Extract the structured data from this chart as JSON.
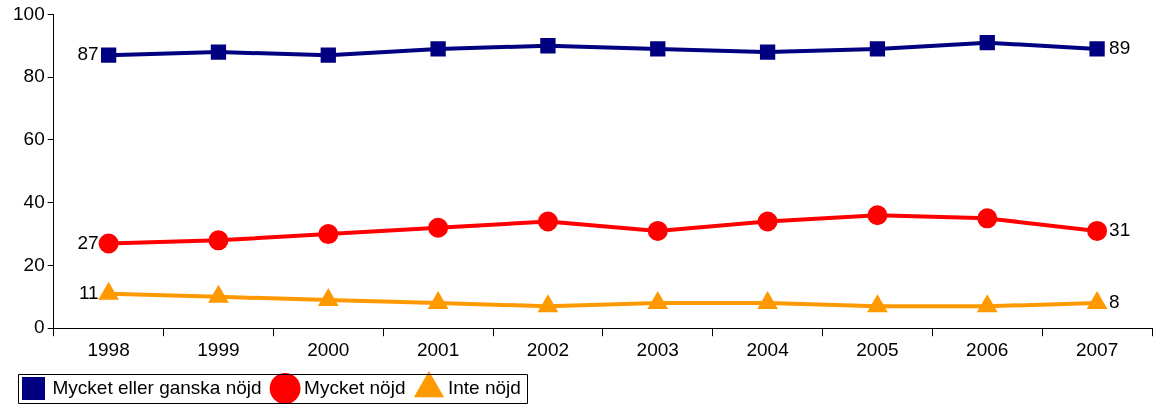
{
  "chart_data": {
    "type": "line",
    "categories": [
      "1998",
      "1999",
      "2000",
      "2001",
      "2002",
      "2003",
      "2004",
      "2005",
      "2006",
      "2007"
    ],
    "series": [
      {
        "name": "Mycket eller ganska nöjd",
        "color": "#000080",
        "marker": "square",
        "values": [
          87,
          88,
          87,
          89,
          90,
          89,
          88,
          89,
          91,
          89
        ],
        "value_labels": [
          "87",
          null,
          null,
          null,
          null,
          null,
          null,
          null,
          null,
          "89"
        ]
      },
      {
        "name": "Mycket nöjd",
        "color": "#ff0000",
        "marker": "circle",
        "values": [
          27,
          28,
          30,
          32,
          34,
          31,
          34,
          36,
          35,
          31
        ],
        "value_labels": [
          "27",
          null,
          null,
          null,
          null,
          null,
          null,
          null,
          null,
          "31"
        ]
      },
      {
        "name": "Inte nöjd",
        "color": "#ff9900",
        "marker": "triangle",
        "values": [
          11,
          10,
          9,
          8,
          7,
          8,
          8,
          7,
          7,
          8
        ],
        "value_labels": [
          "11",
          null,
          null,
          null,
          null,
          null,
          null,
          null,
          null,
          "8"
        ]
      }
    ],
    "ylim": [
      0,
      100
    ],
    "yticks": [
      0,
      20,
      40,
      60,
      80,
      100
    ],
    "grid": false,
    "legend": "bottom",
    "line_style": "solid"
  }
}
